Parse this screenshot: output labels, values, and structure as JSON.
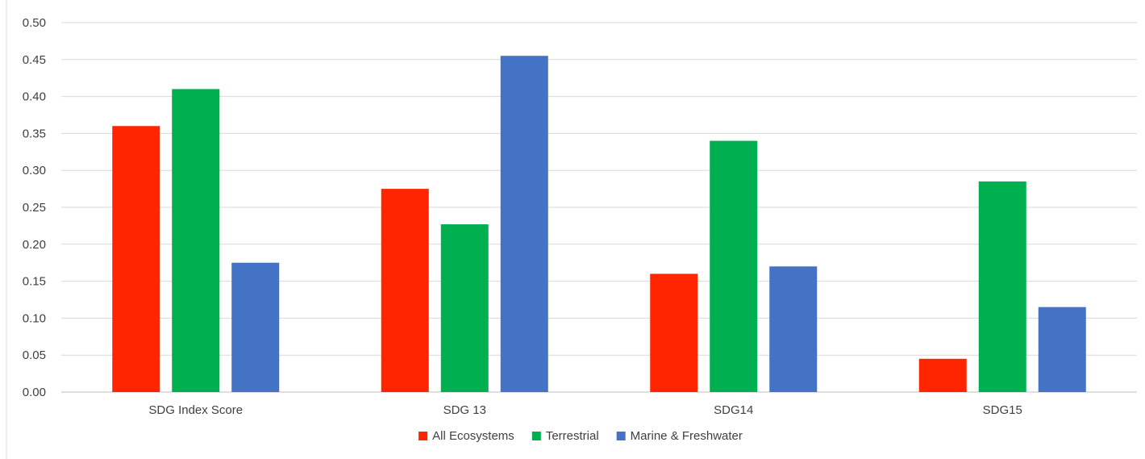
{
  "chart_data": {
    "type": "bar",
    "title": "",
    "xlabel": "",
    "ylabel": "",
    "ylim": [
      0,
      0.5
    ],
    "y_ticks": [
      "0.00",
      "0.05",
      "0.10",
      "0.15",
      "0.20",
      "0.25",
      "0.30",
      "0.35",
      "0.40",
      "0.45",
      "0.50"
    ],
    "grid": "horizontal",
    "legend_position": "bottom-center",
    "categories": [
      "SDG Index Score",
      "SDG 13",
      "SDG14",
      "SDG15"
    ],
    "series": [
      {
        "name": "All Ecosystems",
        "color": "#ff2500",
        "values": [
          0.36,
          0.275,
          0.16,
          0.045
        ]
      },
      {
        "name": "Terrestrial",
        "color": "#00b050",
        "values": [
          0.41,
          0.227,
          0.34,
          0.285
        ]
      },
      {
        "name": "Marine & Freshwater",
        "color": "#4472c4",
        "values": [
          0.175,
          0.455,
          0.17,
          0.115
        ]
      }
    ]
  }
}
